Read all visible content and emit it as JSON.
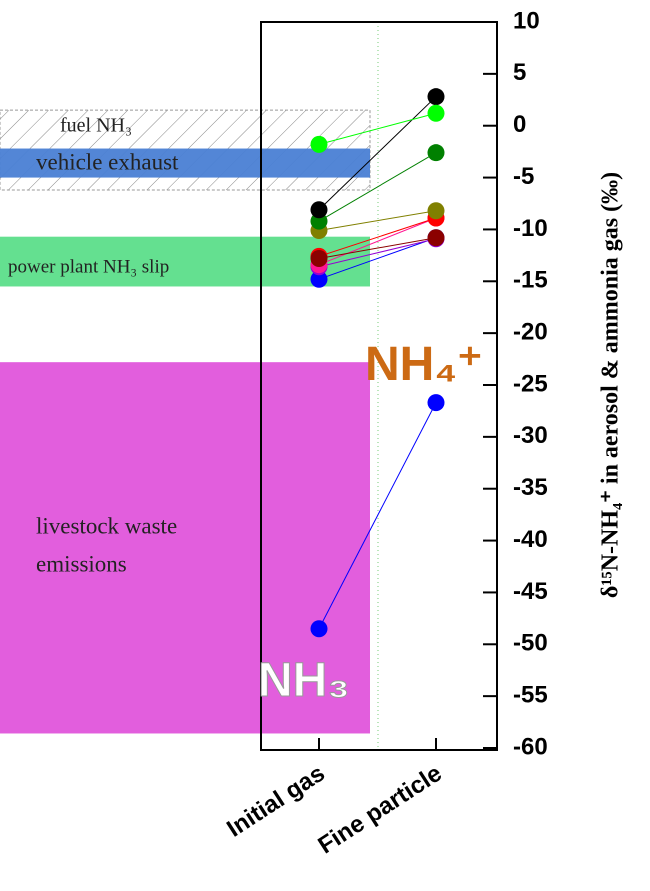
{
  "chart_data": {
    "type": "line",
    "categories": [
      "Initial gas",
      "Fine particle"
    ],
    "ylabel": "δ¹⁵N-NH₄⁺ in aerosol & ammonia gas (‰)",
    "ylim": [
      -60,
      10
    ],
    "yticks": [
      10,
      5,
      0,
      -5,
      -10,
      -15,
      -20,
      -25,
      -30,
      -35,
      -40,
      -45,
      -50,
      -55,
      -60
    ],
    "annotations": [
      "NH₄⁺",
      "NH₃"
    ],
    "bands": [
      {
        "label": [
          "fuel NH₃"
        ],
        "range": [
          -6.2,
          1.5
        ],
        "color": "hatch"
      },
      {
        "label": [
          "vehicle exhaust"
        ],
        "range": [
          -5,
          -2.2
        ],
        "color": "#4a7fd4"
      },
      {
        "label": [
          "power plant NH₃ slip"
        ],
        "range": [
          -15.5,
          -10.7
        ],
        "color": "#5cde8a"
      },
      {
        "label": [
          "livestock waste",
          "emissions"
        ],
        "range": [
          -58.6,
          -22.8
        ],
        "color": "#e055db"
      }
    ],
    "series": [
      {
        "color": "#0000ff",
        "values": [
          -48.5,
          -26.7
        ]
      },
      {
        "color": "#0000ff",
        "values": [
          -14.8,
          -10.8
        ]
      },
      {
        "color": "#9400d3",
        "values": [
          -13.6,
          -10.9
        ]
      },
      {
        "color": "#ff1493",
        "values": [
          -13.4,
          -8.9
        ]
      },
      {
        "color": "#ff0000",
        "values": [
          -12.6,
          -8.9
        ]
      },
      {
        "color": "#8b0000",
        "values": [
          -12.8,
          -10.8
        ]
      },
      {
        "color": "#808000",
        "values": [
          -10.1,
          -8.2
        ]
      },
      {
        "color": "#008000",
        "values": [
          -9.2,
          -2.6
        ]
      },
      {
        "color": "#000000",
        "values": [
          -8.1,
          2.8
        ]
      },
      {
        "color": "#00ff00",
        "values": [
          -1.8,
          1.2
        ]
      }
    ]
  }
}
